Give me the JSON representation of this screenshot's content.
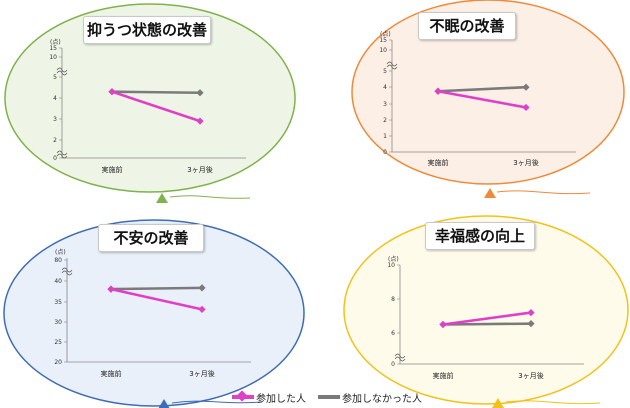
{
  "colors": {
    "participated": "#e040c8",
    "not_participated": "#7a7a7a",
    "panel_borders": [
      "#7fb24a",
      "#ef8a3a",
      "#3f6db3",
      "#f2c21c"
    ],
    "panel_fills": [
      "#eef5e6",
      "#fcefe6",
      "#e9f0fa",
      "#fffbea"
    ]
  },
  "legend": {
    "participated_label": "参加した人",
    "not_participated_label": "参加しなかった人"
  },
  "chart_data": [
    {
      "type": "line",
      "title": "抑うつ状態の改善",
      "unit_label": "(点)",
      "categories": [
        "実施前",
        "3ヶ月後"
      ],
      "yticks": [
        "0",
        "2",
        "3",
        "4",
        "5",
        "10",
        "15"
      ],
      "series": [
        {
          "name": "参加した人",
          "values": [
            4.3,
            2.9
          ]
        },
        {
          "name": "参加しなかった人",
          "values": [
            4.3,
            4.25
          ]
        }
      ]
    },
    {
      "type": "line",
      "title": "不眠の改善",
      "unit_label": "(点)",
      "categories": [
        "実施前",
        "3ヶ月後"
      ],
      "yticks": [
        "0",
        "1",
        "2",
        "3",
        "4",
        "5",
        "10",
        "15"
      ],
      "series": [
        {
          "name": "参加した人",
          "values": [
            3.75,
            2.75
          ]
        },
        {
          "name": "参加しなかった人",
          "values": [
            3.75,
            4.0
          ]
        }
      ]
    },
    {
      "type": "line",
      "title": "不安の改善",
      "unit_label": "(点)",
      "categories": [
        "実施前",
        "3ヶ月後"
      ],
      "yticks": [
        "20",
        "25",
        "30",
        "35",
        "40",
        "80"
      ],
      "series": [
        {
          "name": "参加した人",
          "values": [
            38,
            33
          ]
        },
        {
          "name": "参加しなかった人",
          "values": [
            38,
            38.3
          ]
        }
      ]
    },
    {
      "type": "line",
      "title": "幸福感の向上",
      "unit_label": "(点)",
      "categories": [
        "実施前",
        "3ヶ月後"
      ],
      "yticks": [
        "0",
        "6",
        "8",
        "10"
      ],
      "series": [
        {
          "name": "参加した人",
          "values": [
            6.5,
            7.2
          ]
        },
        {
          "name": "参加しなかった人",
          "values": [
            6.5,
            6.55
          ]
        }
      ]
    }
  ]
}
